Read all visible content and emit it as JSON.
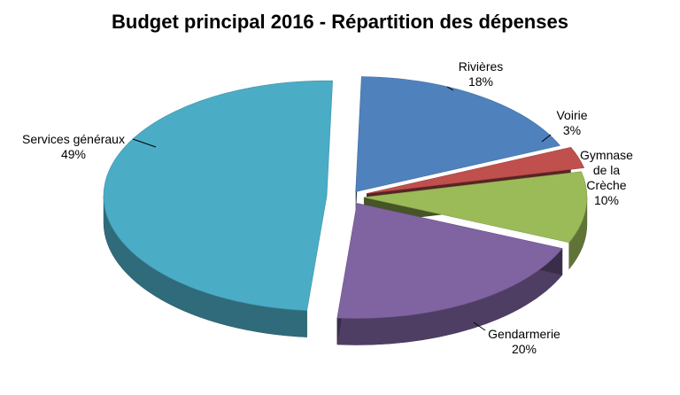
{
  "chart_data": {
    "type": "pie",
    "title": "Budget principal 2016 - Répartition des dépenses",
    "slices": [
      {
        "label": "Rivières",
        "label_lines": [
          "Rivières"
        ],
        "value": 18,
        "value_label": "18%",
        "color": "#4F81BD"
      },
      {
        "label": "Voirie",
        "label_lines": [
          "Voirie"
        ],
        "value": 3,
        "value_label": "3%",
        "color": "#C0504D"
      },
      {
        "label": "Gymnase de la Crèche",
        "label_lines": [
          "Gymnase",
          "de la",
          "Crèche"
        ],
        "value": 10,
        "value_label": "10%",
        "color": "#9BBB59"
      },
      {
        "label": "Gendarmerie",
        "label_lines": [
          "Gendarmerie"
        ],
        "value": 20,
        "value_label": "20%",
        "color": "#8064A2"
      },
      {
        "label": "Services généraux",
        "label_lines": [
          "Services généraux"
        ],
        "value": 49,
        "value_label": "49%",
        "color": "#4BACC6"
      }
    ],
    "legend": "none"
  }
}
